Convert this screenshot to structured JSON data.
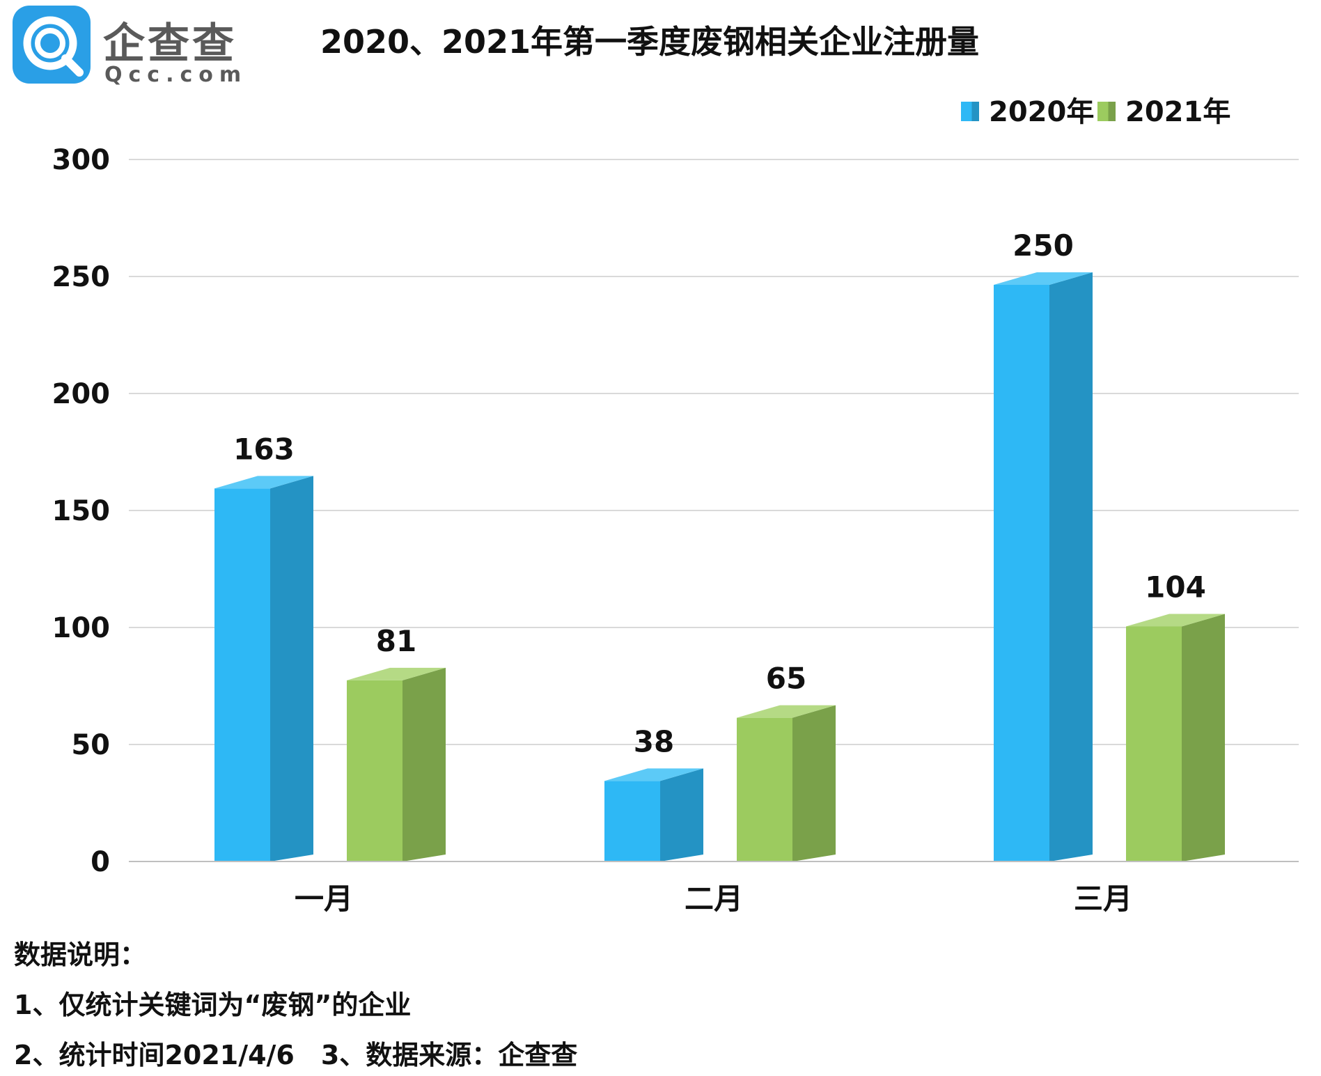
{
  "logo": {
    "name": "企查查",
    "domain": "Qcc.com",
    "icon": "qcc-logo-icon",
    "brand_color": "#2a9fe6"
  },
  "colors": {
    "series_2020": "#2eb8f5",
    "series_2020_side": "#2493c4",
    "series_2020_top": "#5ccaf7",
    "series_2021": "#9ccb5f",
    "series_2021_side": "#7aa14a",
    "series_2021_top": "#b5da85",
    "grid": "#d9d9d9"
  },
  "chart_data": {
    "type": "bar",
    "title": "2020、2021年第一季度废钢相关企业注册量",
    "categories": [
      "一月",
      "二月",
      "三月"
    ],
    "series": [
      {
        "name": "2020年",
        "values": [
          163,
          38,
          250
        ]
      },
      {
        "name": "2021年",
        "values": [
          81,
          65,
          104
        ]
      }
    ],
    "ylim": [
      0,
      300
    ],
    "yticks": [
      "0",
      "50",
      "100",
      "150",
      "200",
      "250",
      "300"
    ],
    "grid": true,
    "legend_position": "top-right",
    "style": "3d-bar"
  },
  "notes": {
    "heading": "数据说明：",
    "line1": "1、仅统计关键词为“废钢”的企业",
    "line2": "2、统计时间2021/4/6　3、数据来源：企查查"
  }
}
